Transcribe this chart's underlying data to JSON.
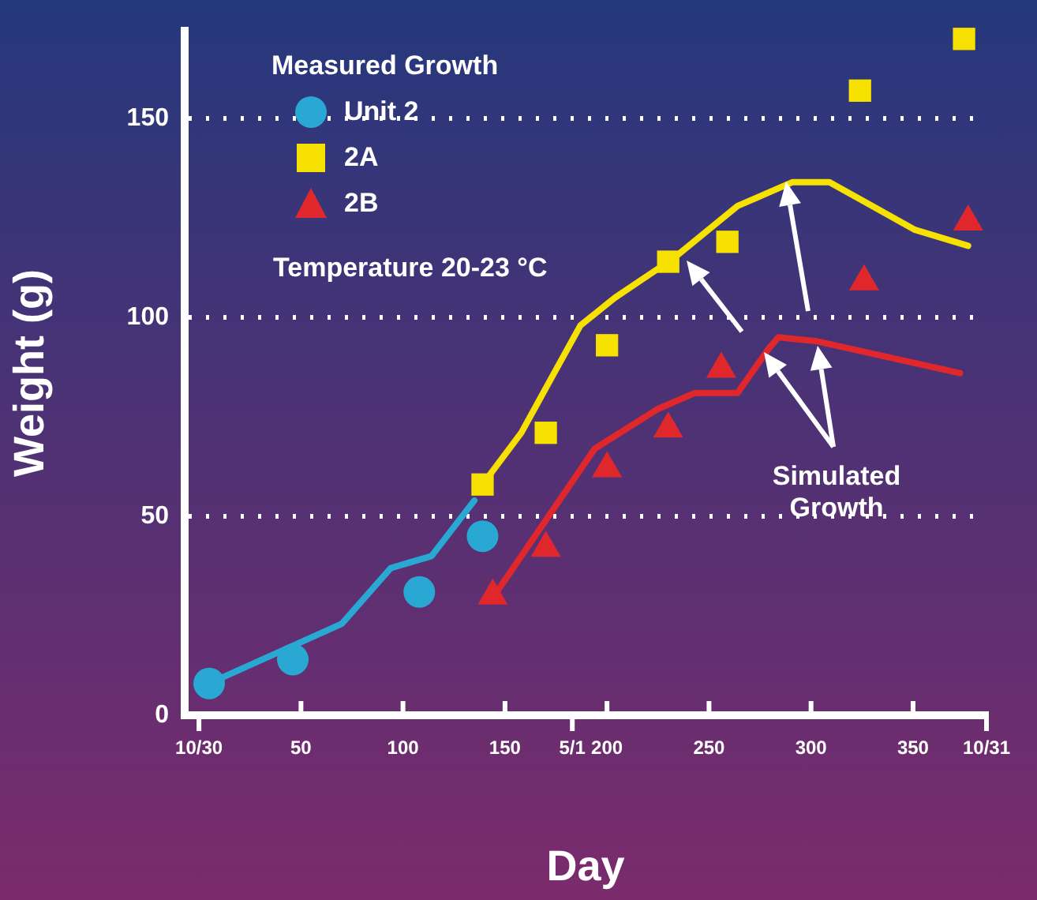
{
  "chart_data": {
    "type": "scatter",
    "xlabel": "Day",
    "ylabel": "Weight (g)",
    "legend_title": "Measured Growth",
    "legend": "top left",
    "grid": "y",
    "xlim": [
      -7,
      386
    ],
    "ylim": [
      0,
      172
    ],
    "xticks": [
      {
        "value": 0,
        "label": "10/30"
      },
      50,
      100,
      150,
      {
        "value": 183,
        "label": "5/1"
      },
      200,
      250,
      300,
      350,
      {
        "value": 386,
        "label": "10/31"
      }
    ],
    "yticks": [
      0,
      50,
      100,
      150
    ],
    "annotations": [
      "Temperature 20-23 °C",
      "Simulated Growth"
    ],
    "series": [
      {
        "type": "line",
        "color": "#2aa8d4",
        "marker": "none",
        "x": [
          5,
          70,
          94,
          114,
          135
        ],
        "values": [
          8,
          23,
          37,
          40,
          54
        ]
      },
      {
        "type": "line",
        "color": "#f7e100",
        "marker": "none",
        "x": [
          139,
          158,
          173,
          187,
          204,
          233,
          264,
          291,
          309,
          351,
          377
        ],
        "values": [
          58,
          71,
          85,
          98,
          105,
          115,
          128,
          134,
          134,
          122,
          118
        ]
      },
      {
        "type": "line",
        "color": "#e0282c",
        "marker": "none",
        "x": [
          146,
          194,
          225,
          243,
          264,
          279,
          284,
          303,
          373
        ],
        "values": [
          31,
          67,
          77,
          81,
          81,
          92,
          95,
          94,
          86
        ]
      },
      {
        "name": "Unit 2",
        "color": "#2aa8d4",
        "marker": "circle",
        "x": [
          5,
          46,
          108,
          139
        ],
        "values": [
          8,
          14,
          31,
          45
        ]
      },
      {
        "name": "2A",
        "color": "#f7e100",
        "marker": "square",
        "x": [
          139,
          170,
          200,
          230,
          259,
          324,
          375
        ],
        "values": [
          58,
          71,
          93,
          114,
          119,
          157,
          170
        ]
      },
      {
        "name": "2B",
        "color": "#e0282c",
        "marker": "triangle",
        "x": [
          144,
          170,
          200,
          230,
          256,
          326,
          377
        ],
        "values": [
          30,
          42,
          62,
          72,
          87,
          109,
          124
        ]
      }
    ]
  }
}
